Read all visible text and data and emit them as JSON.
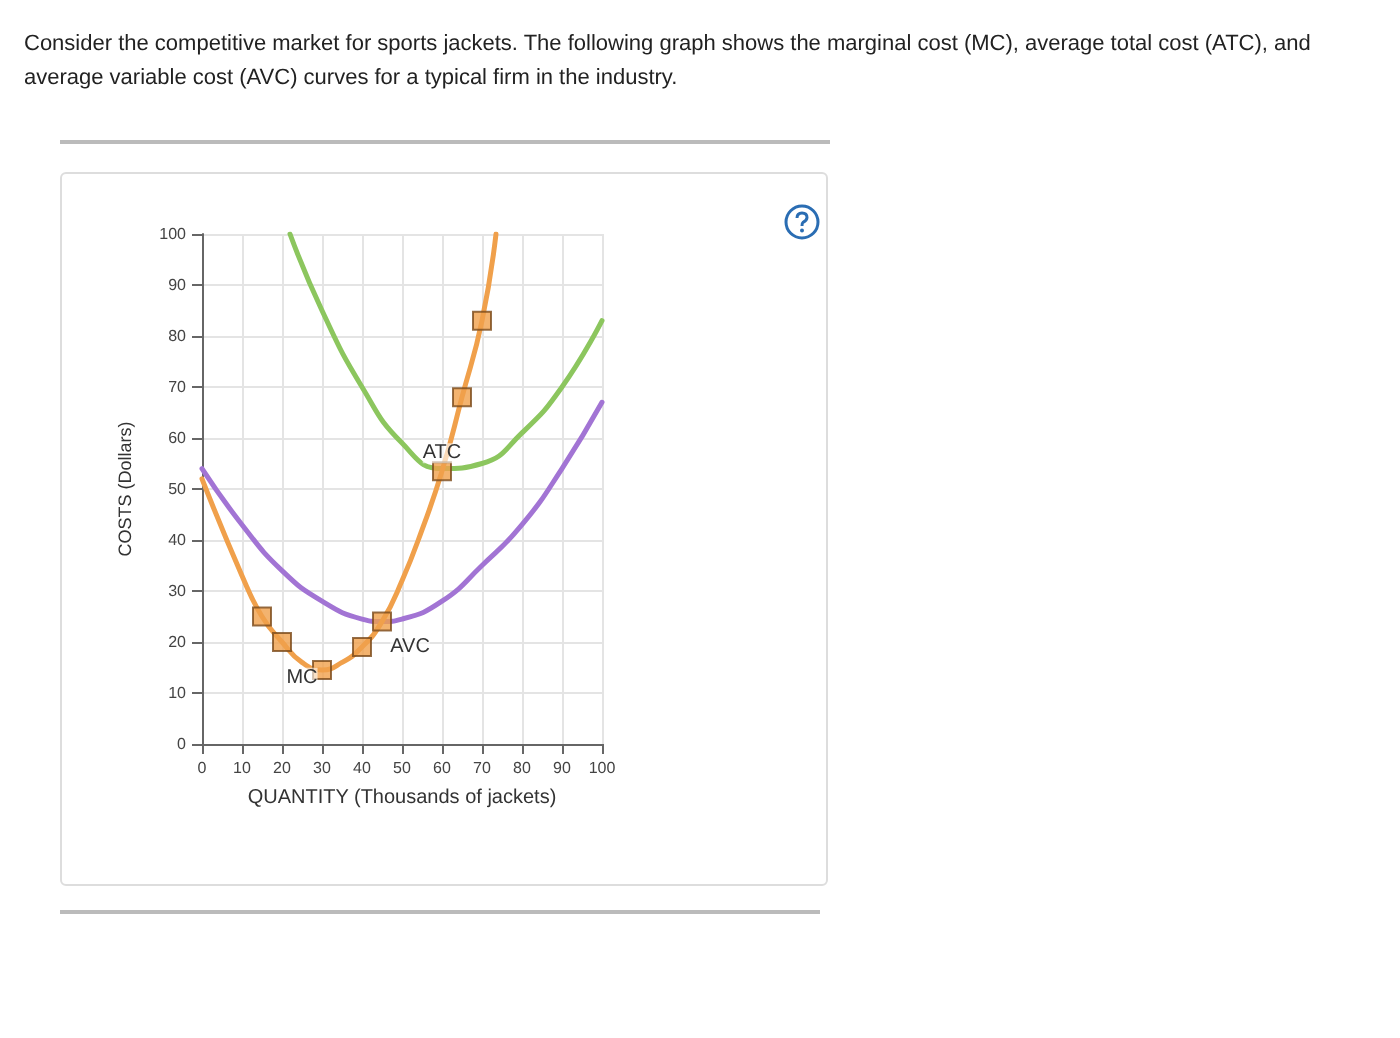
{
  "chart_data": {
    "type": "line",
    "title": "Consider the competitive market for sports jackets. The following graph shows the marginal cost (MC), average total cost (ATC), and average variable cost (AVC) curves for a typical firm in the industry.",
    "xlabel": "QUANTITY (Thousands of jackets)",
    "ylabel": "COSTS (Dollars)",
    "xlim": [
      0,
      100
    ],
    "ylim": [
      0,
      100
    ],
    "xticks": [
      0,
      10,
      20,
      30,
      40,
      50,
      60,
      70,
      80,
      90,
      100
    ],
    "yticks": [
      0,
      10,
      20,
      30,
      40,
      50,
      60,
      70,
      80,
      90,
      100
    ],
    "grid": true,
    "marker": "none",
    "line_style": "solid",
    "series": [
      {
        "color": "#8cc65e",
        "x": [
          22,
          30,
          40,
          50,
          60,
          70,
          80,
          90,
          100
        ],
        "values": [
          100,
          85,
          70,
          59,
          54,
          55,
          61,
          70,
          83
        ]
      },
      {
        "color": "#a274d4",
        "x": [
          0,
          10,
          20,
          30,
          40,
          45,
          50,
          60,
          70,
          80,
          90,
          100
        ],
        "values": [
          54,
          43,
          34,
          28,
          24.5,
          24,
          24.5,
          28,
          35,
          43,
          54,
          67
        ]
      },
      {
        "color": "#f0a04b",
        "x": [
          0,
          10,
          15,
          20,
          25,
          30,
          35,
          40,
          45,
          50,
          55,
          60,
          65,
          70,
          73.5
        ],
        "values": [
          52,
          33,
          25,
          20,
          16,
          14.5,
          16,
          19,
          24,
          32,
          42,
          53.5,
          68,
          83,
          100
        ]
      },
      {
        "type": "scatter",
        "marker": "square",
        "color": "#f0a04b",
        "x": [
          15,
          20,
          30,
          40,
          45,
          60,
          65,
          70
        ],
        "values": [
          25,
          20,
          14.5,
          19,
          24,
          53.5,
          68,
          83
        ]
      }
    ],
    "annotations": [
      {
        "text": "ATC",
        "x": 60,
        "y": 57
      },
      {
        "text": "AVC",
        "x": 52,
        "y": 19
      },
      {
        "text": "MC",
        "x": 25,
        "y": 13
      }
    ]
  }
}
